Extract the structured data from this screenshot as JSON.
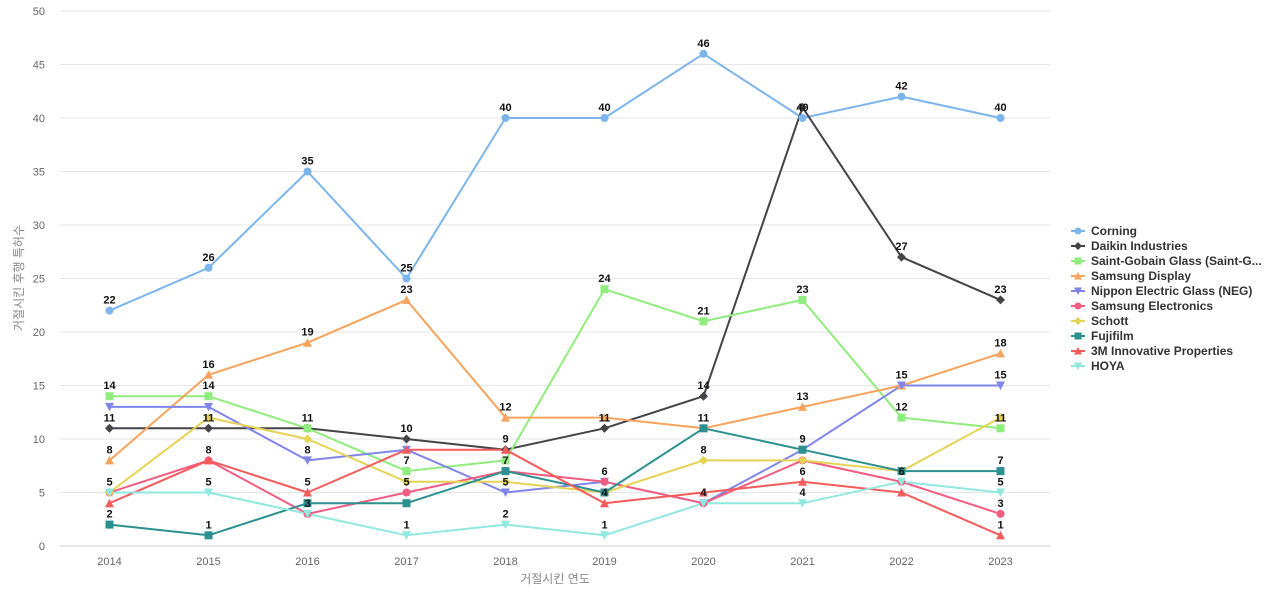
{
  "chart_data": {
    "type": "line",
    "xlabel": "거절시킨 연도",
    "ylabel": "거절시킨 후행 특허수",
    "ylim": [
      0,
      50
    ],
    "y_ticks": [
      0,
      5,
      10,
      15,
      20,
      25,
      30,
      35,
      40,
      45,
      50
    ],
    "categories": [
      "2014",
      "2015",
      "2016",
      "2017",
      "2018",
      "2019",
      "2020",
      "2021",
      "2022",
      "2023"
    ],
    "grid": true,
    "legend_position": "right",
    "series": [
      {
        "name": "Corning",
        "color": "#7cb5ec",
        "marker": "circle",
        "values": [
          22,
          26,
          35,
          25,
          40,
          40,
          46,
          40,
          42,
          40
        ]
      },
      {
        "name": "Daikin Industries",
        "color": "#434348",
        "marker": "diamond",
        "values": [
          11,
          11,
          11,
          10,
          9,
          11,
          14,
          41,
          27,
          23
        ]
      },
      {
        "name": "Saint-Gobain Glass (Saint-G...",
        "color": "#90ed7d",
        "marker": "square",
        "values": [
          14,
          14,
          11,
          7,
          8,
          24,
          21,
          23,
          12,
          11
        ]
      },
      {
        "name": "Samsung Display",
        "color": "#f7a35c",
        "marker": "triangle",
        "values": [
          8,
          16,
          19,
          23,
          12,
          12,
          11,
          13,
          15,
          18
        ]
      },
      {
        "name": "Nippon Electric Glass (NEG)",
        "color": "#8085e9",
        "marker": "triangle-down",
        "values": [
          13,
          13,
          8,
          9,
          5,
          6,
          4,
          9,
          15,
          15
        ]
      },
      {
        "name": "Samsung Electronics",
        "color": "#f15c80",
        "marker": "circle",
        "values": [
          5,
          8,
          3,
          5,
          7,
          6,
          4,
          8,
          6,
          3
        ]
      },
      {
        "name": "Schott",
        "color": "#e4d354",
        "marker": "diamond",
        "values": [
          5,
          12,
          10,
          6,
          6,
          5,
          8,
          8,
          7,
          12
        ]
      },
      {
        "name": "Fujifilm",
        "color": "#2b908f",
        "marker": "square",
        "values": [
          2,
          1,
          4,
          4,
          7,
          5,
          11,
          9,
          7,
          7
        ]
      },
      {
        "name": "3M Innovative Properties",
        "color": "#f45b5b",
        "marker": "triangle",
        "values": [
          4,
          8,
          5,
          9,
          9,
          4,
          5,
          6,
          5,
          1
        ]
      },
      {
        "name": "HOYA",
        "color": "#91e8e1",
        "marker": "triangle-down",
        "values": [
          5,
          5,
          3,
          1,
          2,
          1,
          4,
          4,
          6,
          5
        ]
      }
    ],
    "data_labels": [
      {
        "x": "2014",
        "y": 22,
        "text": "22"
      },
      {
        "x": "2015",
        "y": 26,
        "text": "26"
      },
      {
        "x": "2016",
        "y": 35,
        "text": "35"
      },
      {
        "x": "2017",
        "y": 25,
        "text": "25"
      },
      {
        "x": "2018",
        "y": 40,
        "text": "40"
      },
      {
        "x": "2019",
        "y": 40,
        "text": "40"
      },
      {
        "x": "2020",
        "y": 46,
        "text": "46"
      },
      {
        "x": "2021",
        "y": 40,
        "text": "40"
      },
      {
        "x": "2022",
        "y": 42,
        "text": "42"
      },
      {
        "x": "2023",
        "y": 40,
        "text": "40"
      },
      {
        "x": "2014",
        "y": 14,
        "text": "14"
      },
      {
        "x": "2015",
        "y": 16,
        "text": "16"
      },
      {
        "x": "2016",
        "y": 19,
        "text": "19"
      },
      {
        "x": "2017",
        "y": 23,
        "text": "23"
      },
      {
        "x": "2019",
        "y": 24,
        "text": "24"
      },
      {
        "x": "2020",
        "y": 21,
        "text": "21"
      },
      {
        "x": "2021",
        "y": 23,
        "text": "23"
      },
      {
        "x": "2022",
        "y": 27,
        "text": "27"
      },
      {
        "x": "2023",
        "y": 23,
        "text": "23"
      },
      {
        "x": "2023",
        "y": 18,
        "text": "18"
      },
      {
        "x": "2022",
        "y": 15,
        "text": "15"
      },
      {
        "x": "2023",
        "y": 15,
        "text": "15"
      },
      {
        "x": "2015",
        "y": 14,
        "text": "14"
      },
      {
        "x": "2020",
        "y": 14,
        "text": "14"
      },
      {
        "x": "2021",
        "y": 13,
        "text": "13"
      },
      {
        "x": "2018",
        "y": 12,
        "text": "12"
      },
      {
        "x": "2022",
        "y": 12,
        "text": "12"
      },
      {
        "x": "2014",
        "y": 11,
        "text": "11"
      },
      {
        "x": "2015",
        "y": 11,
        "text": "11"
      },
      {
        "x": "2016",
        "y": 11,
        "text": "11"
      },
      {
        "x": "2019",
        "y": 11,
        "text": "11"
      },
      {
        "x": "2020",
        "y": 11,
        "text": "11"
      },
      {
        "x": "2023",
        "y": 11,
        "text": "11"
      },
      {
        "x": "2017",
        "y": 10,
        "text": "10"
      },
      {
        "x": "2018",
        "y": 9,
        "text": "9"
      },
      {
        "x": "2021",
        "y": 9,
        "text": "9"
      },
      {
        "x": "2014",
        "y": 8,
        "text": "8"
      },
      {
        "x": "2015",
        "y": 8,
        "text": "8"
      },
      {
        "x": "2016",
        "y": 8,
        "text": "8"
      },
      {
        "x": "2020",
        "y": 8,
        "text": "8"
      },
      {
        "x": "2017",
        "y": 7,
        "text": "7"
      },
      {
        "x": "2018",
        "y": 7,
        "text": "7"
      },
      {
        "x": "2023",
        "y": 7,
        "text": "7"
      },
      {
        "x": "2019",
        "y": 6,
        "text": "6"
      },
      {
        "x": "2021",
        "y": 6,
        "text": "6"
      },
      {
        "x": "2022",
        "y": 6,
        "text": "6"
      },
      {
        "x": "2014",
        "y": 5,
        "text": "5"
      },
      {
        "x": "2015",
        "y": 5,
        "text": "5"
      },
      {
        "x": "2016",
        "y": 5,
        "text": "5"
      },
      {
        "x": "2017",
        "y": 5,
        "text": "5"
      },
      {
        "x": "2018",
        "y": 5,
        "text": "5"
      },
      {
        "x": "2023",
        "y": 5,
        "text": "5"
      },
      {
        "x": "2019",
        "y": 4,
        "text": "4"
      },
      {
        "x": "2020",
        "y": 4,
        "text": "4"
      },
      {
        "x": "2021",
        "y": 4,
        "text": "4"
      },
      {
        "x": "2016",
        "y": 3,
        "text": "3"
      },
      {
        "x": "2023",
        "y": 3,
        "text": "3"
      },
      {
        "x": "2014",
        "y": 2,
        "text": "2"
      },
      {
        "x": "2018",
        "y": 2,
        "text": "2"
      },
      {
        "x": "2015",
        "y": 1,
        "text": "1"
      },
      {
        "x": "2017",
        "y": 1,
        "text": "1"
      },
      {
        "x": "2019",
        "y": 1,
        "text": "1"
      },
      {
        "x": "2023",
        "y": 1,
        "text": "1"
      }
    ]
  }
}
